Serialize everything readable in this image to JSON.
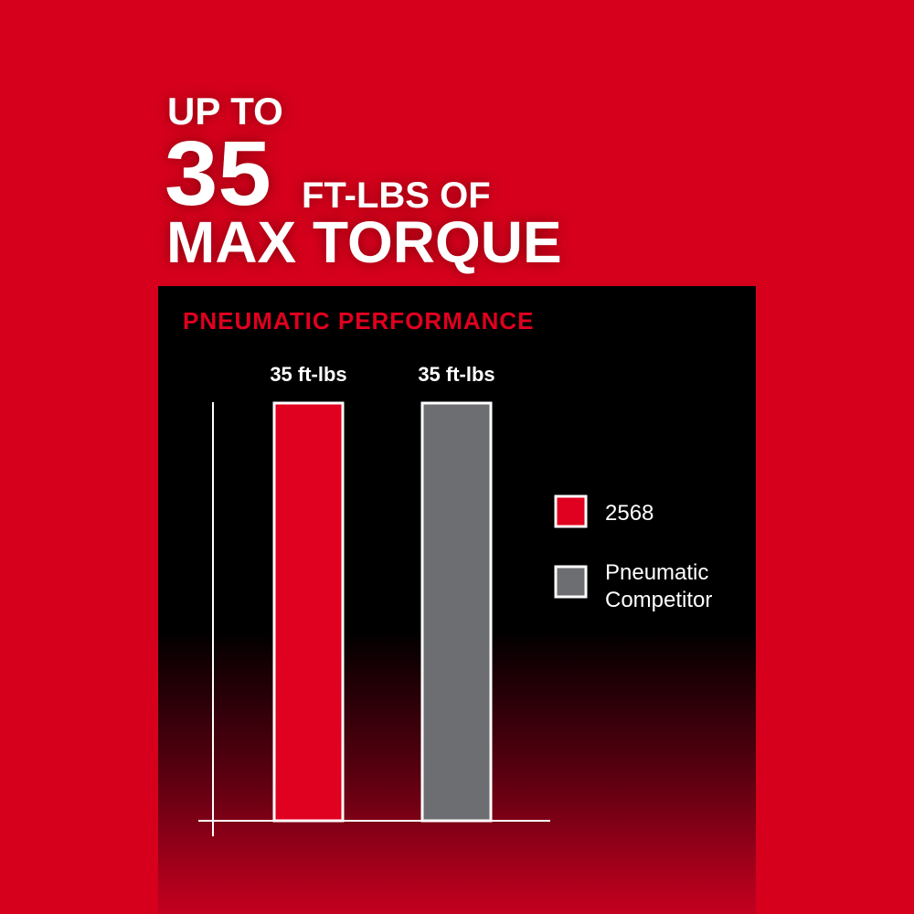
{
  "headline": {
    "line1": "UP TO",
    "number": "35",
    "unit": "FT-LBS OF",
    "line3": "MAX TORQUE"
  },
  "colors": {
    "background": "#d6001c",
    "panel": "#000000",
    "accent": "#e0001f",
    "competitor": "#6d6e71"
  },
  "chart_data": {
    "type": "bar",
    "title": "PNEUMATIC PERFORMANCE",
    "categories": [
      "2568",
      "Pneumatic Competitor"
    ],
    "values": [
      35,
      35
    ],
    "data_labels": [
      "35 ft-lbs",
      "35 ft-lbs"
    ],
    "ylim": [
      0,
      35
    ],
    "grid": false,
    "legend_placement": "right",
    "series": [
      {
        "name": "2568",
        "color": "#e0001f"
      },
      {
        "name": "Pneumatic Competitor",
        "color": "#6d6e71"
      }
    ],
    "legend_lines": [
      [
        "2568"
      ],
      [
        "Pneumatic",
        "Competitor"
      ]
    ]
  }
}
